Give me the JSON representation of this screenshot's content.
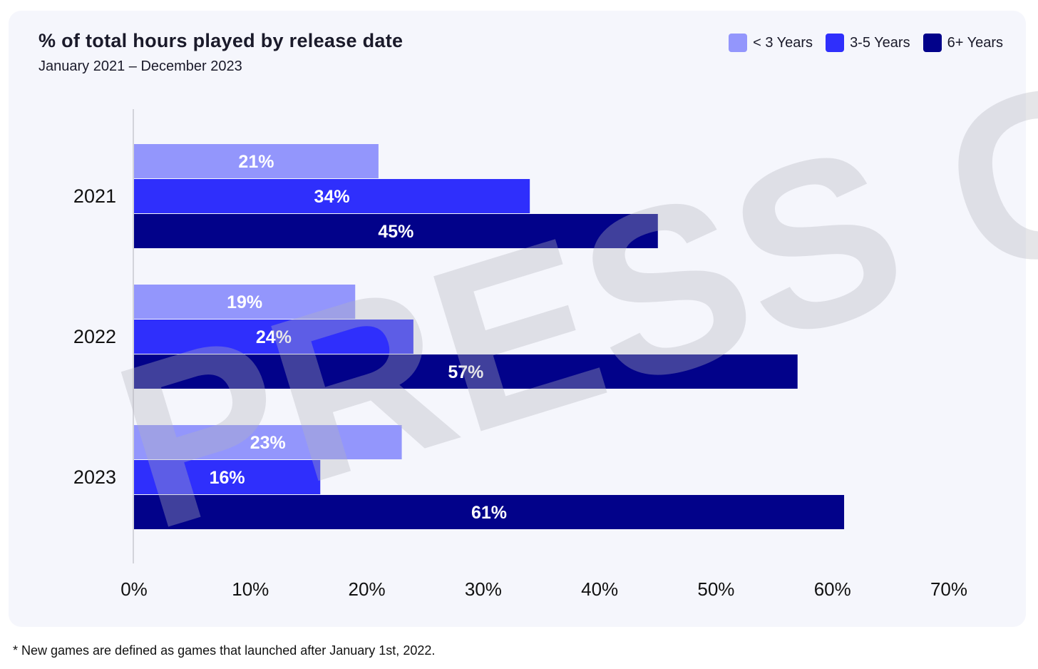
{
  "chart_data": {
    "type": "bar",
    "orientation": "horizontal",
    "title": "% of total hours played by release date",
    "subtitle": "January 2021 – December 2023",
    "categories": [
      "2021",
      "2022",
      "2023"
    ],
    "series": [
      {
        "name": "< 3 Years",
        "color": "#9396fc",
        "values": [
          21,
          19,
          23
        ],
        "labels": [
          "21%",
          "19%",
          "23%"
        ]
      },
      {
        "name": "3-5 Years",
        "color": "#2f2ffc",
        "values": [
          34,
          24,
          16
        ],
        "labels": [
          "34%",
          "24%",
          "16%"
        ]
      },
      {
        "name": "6+ Years",
        "color": "#02028a",
        "values": [
          45,
          57,
          61
        ],
        "labels": [
          "45%",
          "57%",
          "61%"
        ]
      }
    ],
    "xlim": [
      0,
      70
    ],
    "xticks": [
      0,
      10,
      20,
      30,
      40,
      50,
      60,
      70
    ],
    "xtick_labels": [
      "0%",
      "10%",
      "20%",
      "30%",
      "40%",
      "50%",
      "60%",
      "70%"
    ],
    "grid": false,
    "legend_position": "top-right"
  },
  "watermark": "PRESS CO",
  "footnote": "* New games are defined as games that launched after January 1st, 2022."
}
